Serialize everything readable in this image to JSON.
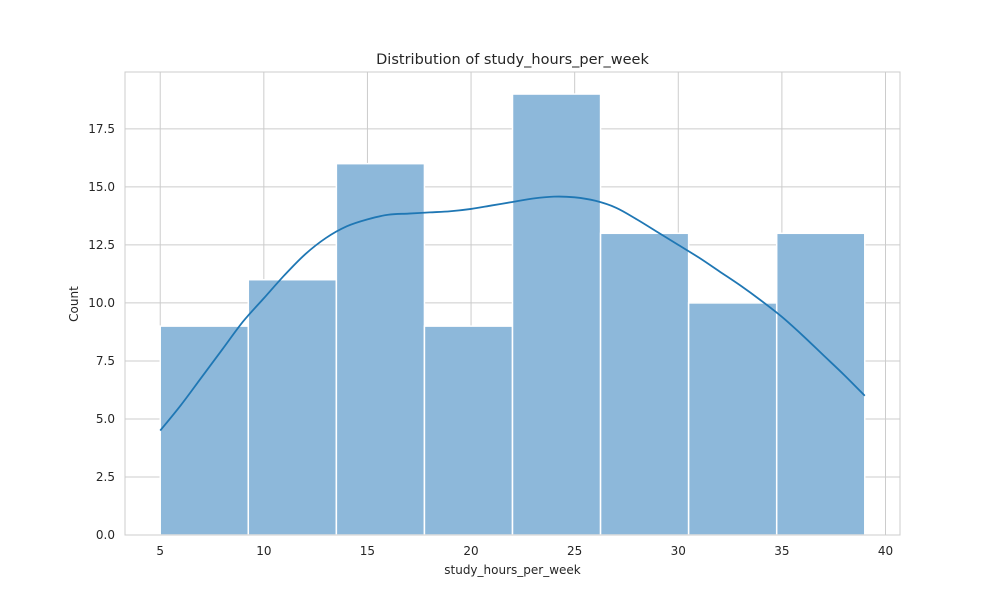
{
  "chart_data": {
    "type": "bar",
    "title": "Distribution of study_hours_per_week",
    "xlabel": "study_hours_per_week",
    "ylabel": "Count",
    "xlim": [
      3.3,
      40.7
    ],
    "ylim": [
      0,
      19.95
    ],
    "x_ticks": [
      5,
      10,
      15,
      20,
      25,
      30,
      35,
      40
    ],
    "y_ticks": [
      0.0,
      2.5,
      5.0,
      7.5,
      10.0,
      12.5,
      15.0,
      17.5
    ],
    "y_tick_labels": [
      "0.0",
      "2.5",
      "5.0",
      "7.5",
      "10.0",
      "12.5",
      "15.0",
      "17.5"
    ],
    "bins": [
      {
        "x0": 5.0,
        "x1": 9.25,
        "count": 9
      },
      {
        "x0": 9.25,
        "x1": 13.5,
        "count": 11
      },
      {
        "x0": 13.5,
        "x1": 17.75,
        "count": 16
      },
      {
        "x0": 17.75,
        "x1": 22.0,
        "count": 9
      },
      {
        "x0": 22.0,
        "x1": 26.25,
        "count": 19
      },
      {
        "x0": 26.25,
        "x1": 30.5,
        "count": 13
      },
      {
        "x0": 30.5,
        "x1": 34.75,
        "count": 10
      },
      {
        "x0": 34.75,
        "x1": 39.0,
        "count": 13
      }
    ],
    "kde": {
      "x": [
        5,
        6,
        7,
        8,
        9,
        10,
        11,
        12,
        13,
        14,
        15,
        16,
        17,
        18,
        19,
        20,
        21,
        22,
        23,
        24,
        25,
        26,
        27,
        28,
        29,
        30,
        31,
        32,
        33,
        34,
        35,
        36,
        37,
        38,
        39
      ],
      "y": [
        4.5,
        5.6,
        6.8,
        8.0,
        9.2,
        10.2,
        11.2,
        12.1,
        12.8,
        13.3,
        13.6,
        13.8,
        13.85,
        13.9,
        13.95,
        14.05,
        14.2,
        14.35,
        14.5,
        14.58,
        14.55,
        14.4,
        14.1,
        13.6,
        13.05,
        12.5,
        11.95,
        11.35,
        10.75,
        10.1,
        9.4,
        8.6,
        7.75,
        6.9,
        6.0
      ]
    },
    "grid": true,
    "legend": "none",
    "colors": {
      "bar_fill": "#8db8da",
      "bar_edge": "#ffffff",
      "kde_line": "#1f77b4",
      "grid": "#cccccc",
      "frame": "#cccccc",
      "text": "#262626"
    }
  }
}
